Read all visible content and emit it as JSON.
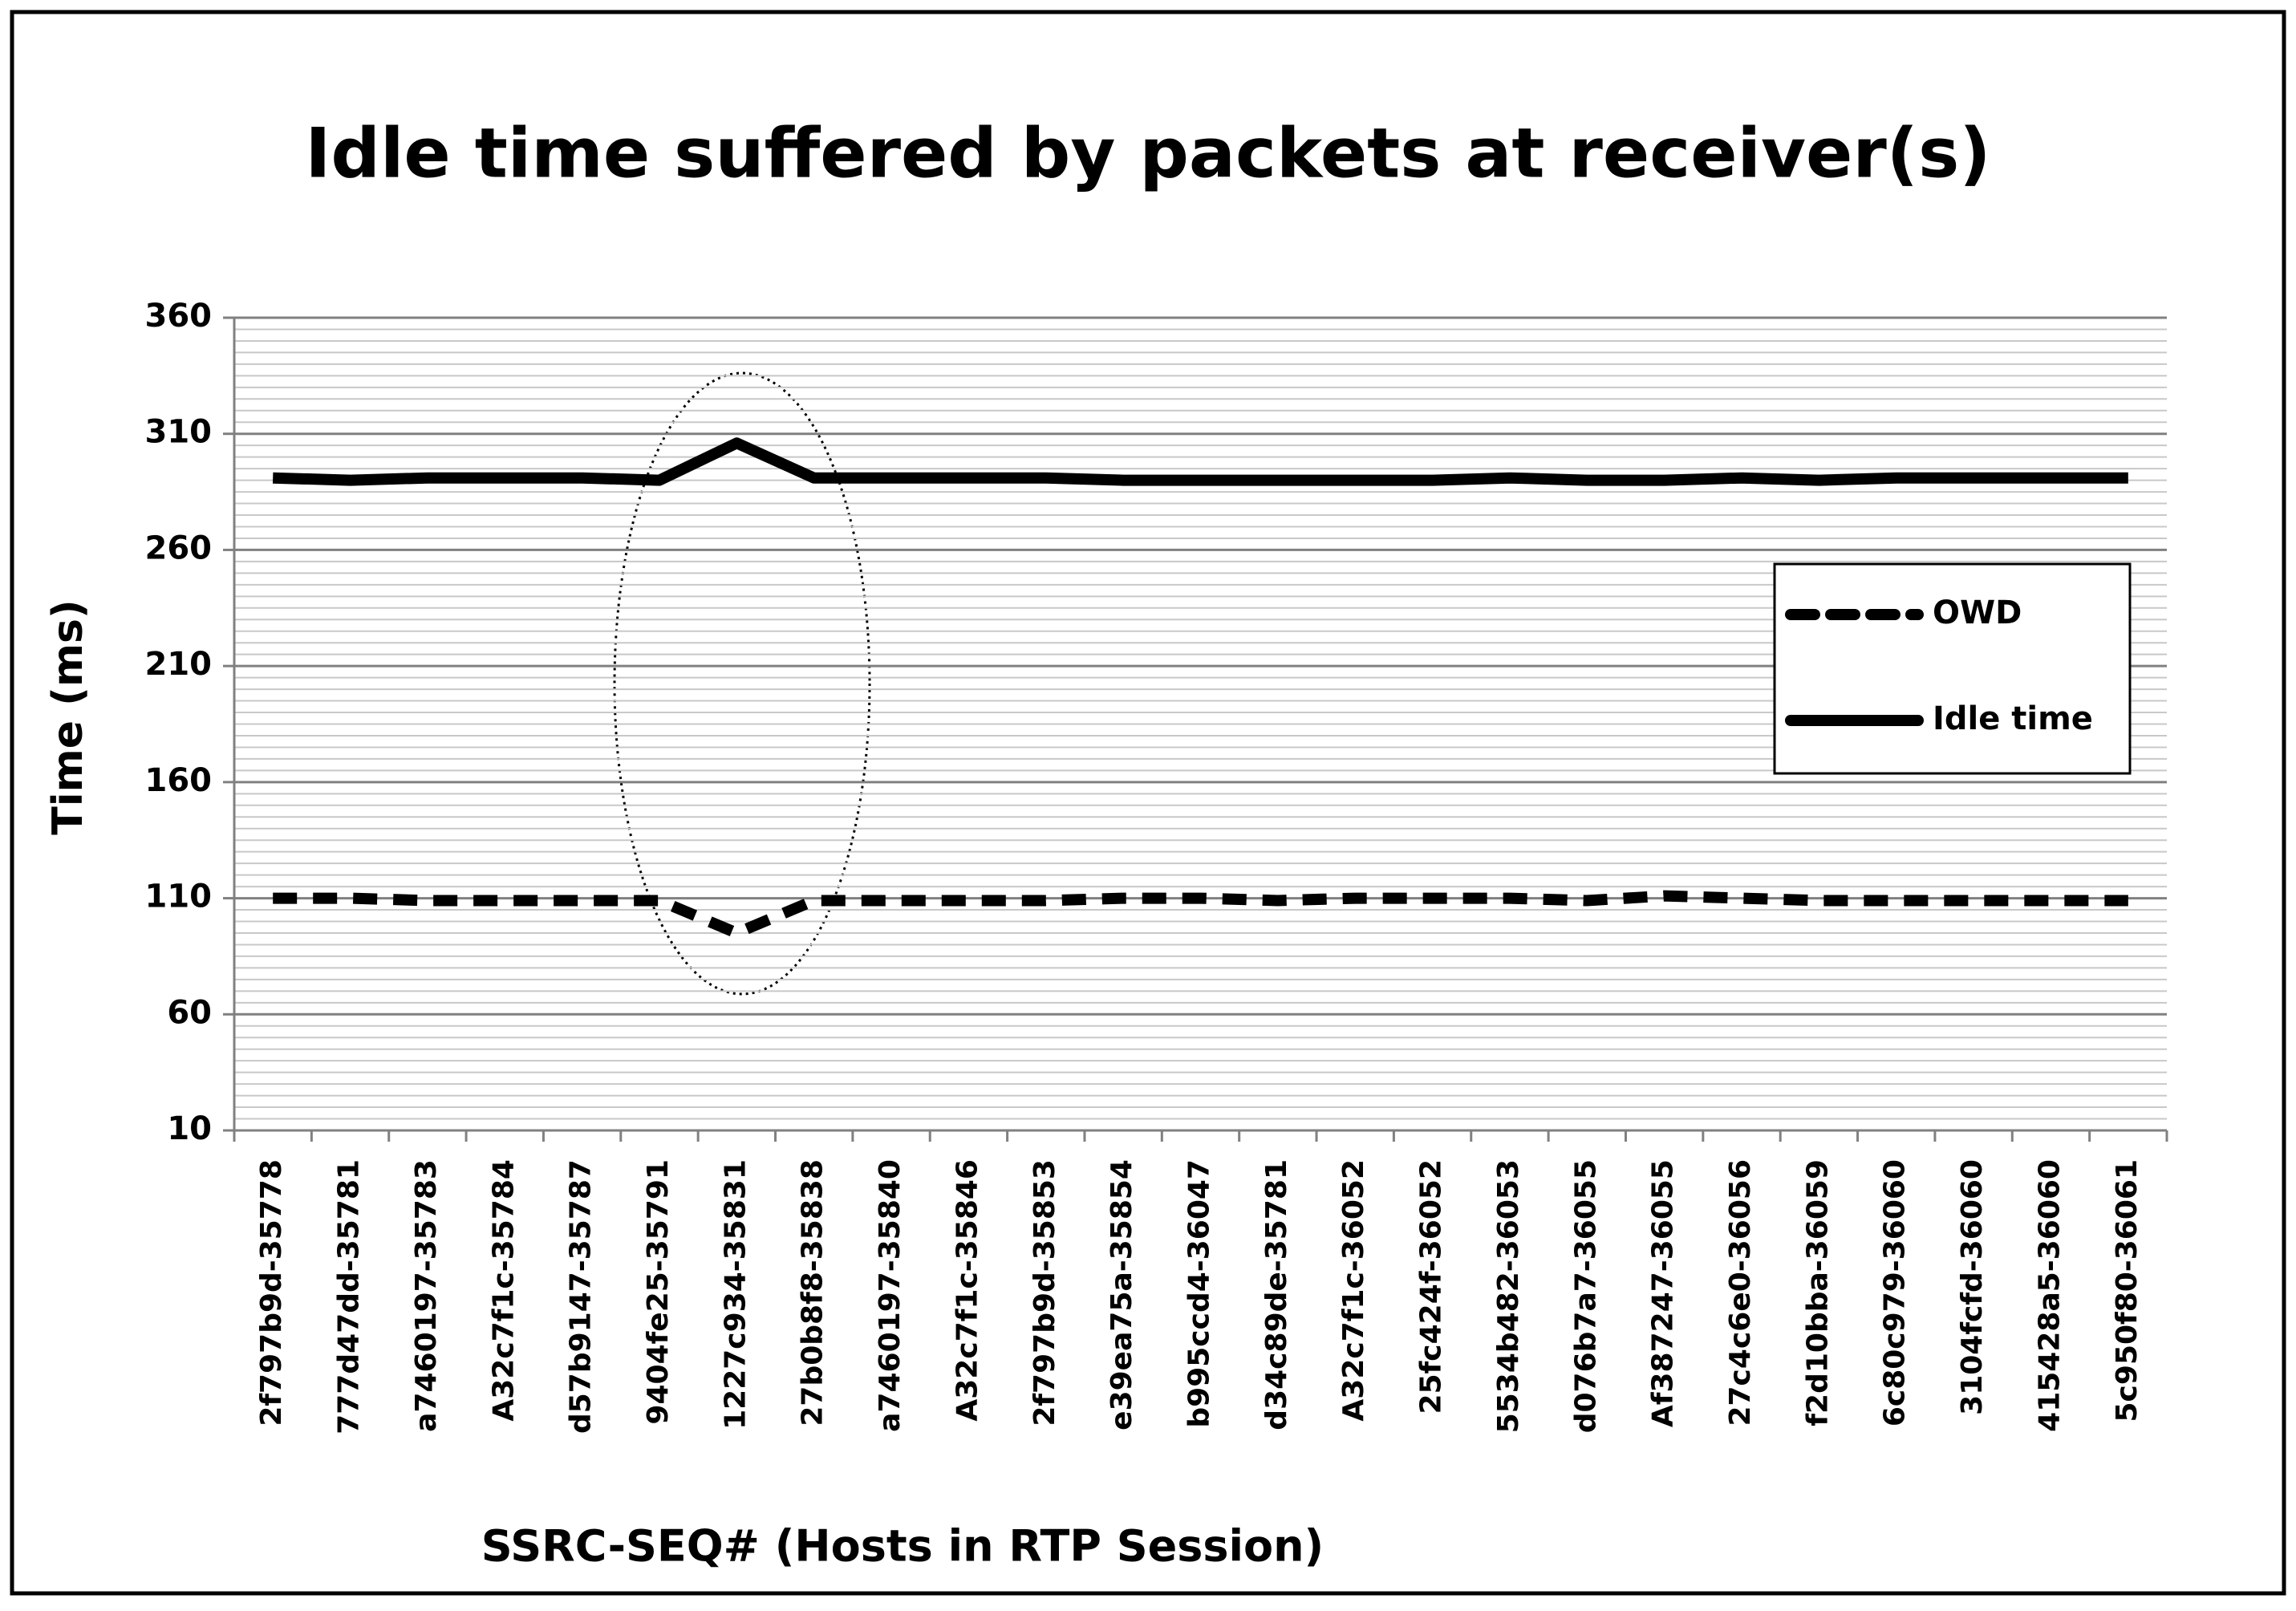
{
  "chart_data": {
    "type": "line",
    "title": "Idle time suffered by packets at receiver(s)",
    "x_label": "SSRC-SEQ# (Hosts in RTP Session)",
    "y_label": "Time (ms)",
    "categories": [
      "2f797b9d-35778",
      "777d47dd-35781",
      "a7460197-35783",
      "A32c7f1c-35784",
      "d57b9147-35787",
      "9404fe25-35791",
      "1227c934-35831",
      "27b0b8f8-35838",
      "a7460197-35840",
      "A32c7f1c-35846",
      "2f797b9d-35853",
      "e39ea75a-35854",
      "b995ccd4-36047",
      "d34c89de-35781",
      "A32c7f1c-36052",
      "25fc424f-36052",
      "5534b482-36053",
      "d076b7a7-36055",
      "Af387247-36055",
      "27c4c6e0-36056",
      "f2d10bba-36059",
      "6c80c979-36060",
      "3104fcfd-36060",
      "415428a5-36060",
      "5c950f80-36061"
    ],
    "series": [
      {
        "name": "OWD",
        "color": "#000000",
        "line_style": "dashed",
        "values": [
          110,
          110,
          109,
          109,
          109,
          109,
          95,
          109,
          109,
          109,
          109,
          110,
          110,
          109,
          110,
          110,
          110,
          109,
          111,
          110,
          109,
          109,
          109,
          109,
          109
        ]
      },
      {
        "name": "Idle time",
        "color": "#000000",
        "line_style": "solid",
        "values": [
          291,
          290,
          291,
          291,
          291,
          290,
          306,
          291,
          291,
          291,
          291,
          290,
          290,
          290,
          290,
          290,
          291,
          290,
          290,
          291,
          290,
          291,
          291,
          291,
          291
        ]
      }
    ],
    "ylim": [
      10,
      360
    ],
    "yticks": [
      10,
      60,
      110,
      160,
      210,
      260,
      310,
      360
    ],
    "grid": true,
    "legend": "right"
  }
}
